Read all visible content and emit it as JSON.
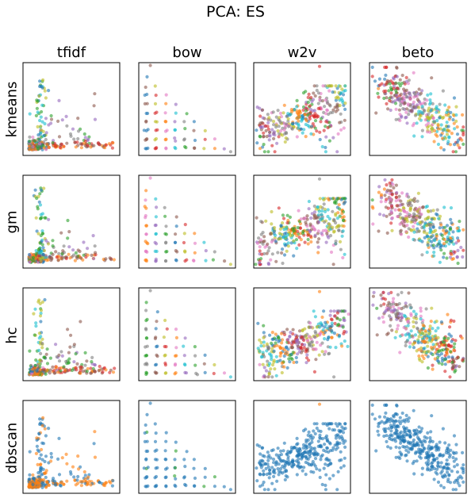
{
  "title": "PCA: ES",
  "columns": [
    "tfidf",
    "bow",
    "w2v",
    "beto"
  ],
  "rows": [
    "kmeans",
    "gm",
    "hc",
    "dbscan"
  ],
  "colors": {
    "palette": [
      "#1f77b4",
      "#ff7f0e",
      "#2ca02c",
      "#d62728",
      "#9467bd",
      "#8c564b",
      "#e377c2",
      "#7f7f7f",
      "#bcbd22",
      "#17becf"
    ],
    "dbscan": [
      "#1f77b4",
      "#ff7f0e",
      "#2ca02c"
    ]
  },
  "chart_data": {
    "type": "scatter",
    "layout": "grid 4x4 of small scatter plots, no axis ticks",
    "grid": false,
    "axis_ticks": false,
    "marker_alpha": 0.6,
    "subplots": [
      {
        "row": "kmeans",
        "col": "tfidf",
        "pattern": "L-shape with dense origin, vertical arm and long horizontal arm",
        "n_clusters": 10
      },
      {
        "row": "kmeans",
        "col": "bow",
        "pattern": "discrete grid of dots decreasing toward the right",
        "n_clusters": 10
      },
      {
        "row": "kmeans",
        "col": "w2v",
        "pattern": "cone-shaped cloud, one outlier top",
        "n_clusters": 10
      },
      {
        "row": "kmeans",
        "col": "beto",
        "pattern": "broad diagonal cloud",
        "n_clusters": 10
      },
      {
        "row": "gm",
        "col": "tfidf",
        "pattern": "L-shape with dense origin",
        "n_clusters": 10
      },
      {
        "row": "gm",
        "col": "bow",
        "pattern": "discrete grid of dots",
        "n_clusters": 10
      },
      {
        "row": "gm",
        "col": "w2v",
        "pattern": "cone-shaped cloud, one outlier top",
        "n_clusters": 10
      },
      {
        "row": "gm",
        "col": "beto",
        "pattern": "broad diagonal cloud",
        "n_clusters": 10
      },
      {
        "row": "hc",
        "col": "tfidf",
        "pattern": "L-shape with dense origin",
        "n_clusters": 10
      },
      {
        "row": "hc",
        "col": "bow",
        "pattern": "discrete grid of dots",
        "n_clusters": 10
      },
      {
        "row": "hc",
        "col": "w2v",
        "pattern": "cone-shaped cloud, one outlier top",
        "n_clusters": 10
      },
      {
        "row": "hc",
        "col": "beto",
        "pattern": "broad diagonal cloud",
        "n_clusters": 10
      },
      {
        "row": "dbscan",
        "col": "tfidf",
        "pattern": "L-shape, mostly two clusters",
        "n_clusters": 3
      },
      {
        "row": "dbscan",
        "col": "bow",
        "pattern": "discrete grid of dots, mostly one cluster",
        "n_clusters": 3
      },
      {
        "row": "dbscan",
        "col": "w2v",
        "pattern": "cone-shaped cloud, single cluster",
        "n_clusters": 2
      },
      {
        "row": "dbscan",
        "col": "beto",
        "pattern": "broad diagonal cloud, single cluster",
        "n_clusters": 1
      }
    ]
  }
}
